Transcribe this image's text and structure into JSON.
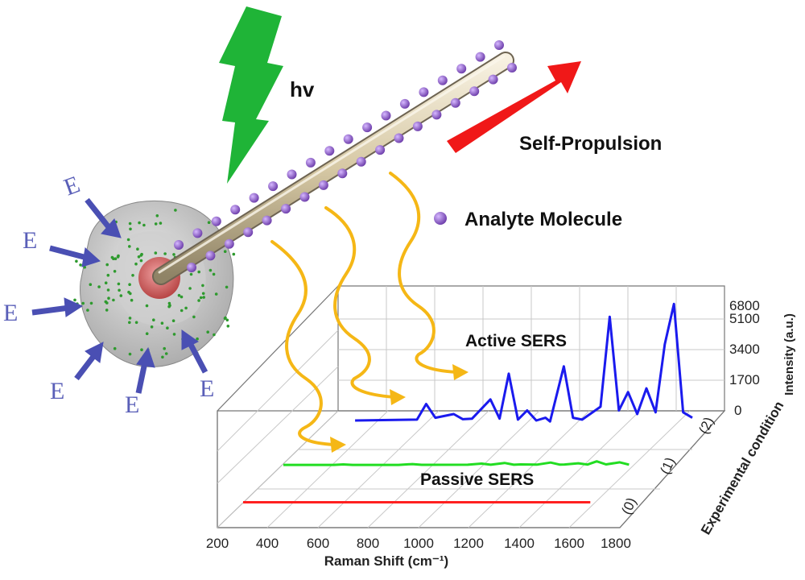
{
  "labels": {
    "hv": "hv",
    "self_propulsion": "Self-Propulsion",
    "analyte": "Analyte Molecule",
    "active_sers": "Active SERS",
    "passive_sers": "Passive SERS",
    "efield": [
      "E",
      "E",
      "E",
      "E",
      "E",
      "E"
    ]
  },
  "colors": {
    "lightning": "#1fb437",
    "propulsion_arrow": "#f01818",
    "analyte": "#8a5bc9",
    "efield_arrow": "#4a4fb3",
    "wavy_arrow": "#f5b716",
    "series": [
      "#ff2020",
      "#22dd22",
      "#1a1aee"
    ]
  },
  "chart_data": {
    "type": "line",
    "x_ticks": [
      "200",
      "400",
      "600",
      "800",
      "1000",
      "1200",
      "1400",
      "1600",
      "1800"
    ],
    "xlabel": "Raman Shift (cm⁻¹)",
    "y_ticks": [
      "0",
      "1700",
      "3400",
      "5100",
      "6800"
    ],
    "ylabel": "Intensity (a.u.)",
    "z_ticks": [
      "(0)",
      "(1)",
      "(2)"
    ],
    "zlabel": "Experimental condition",
    "xlim": [
      200,
      1800
    ],
    "ylim": [
      0,
      6800
    ],
    "series": [
      {
        "condition": "(0)",
        "x": [
          200,
          1700
        ],
        "y": [
          80,
          80
        ]
      },
      {
        "condition": "(1)",
        "x": [
          200,
          420,
          460,
          500,
          700,
          760,
          800,
          1000,
          1060,
          1100,
          1160,
          1200,
          1230,
          1300,
          1360,
          1400,
          1420,
          1480,
          1520,
          1560,
          1600,
          1660,
          1700
        ],
        "y": [
          150,
          150,
          250,
          150,
          160,
          320,
          170,
          180,
          420,
          180,
          560,
          190,
          250,
          200,
          650,
          210,
          240,
          500,
          220,
          900,
          260,
          700,
          200
        ]
      },
      {
        "condition": "(2)",
        "x": [
          330,
          600,
          640,
          680,
          760,
          800,
          840,
          920,
          960,
          1000,
          1040,
          1080,
          1120,
          1160,
          1180,
          1240,
          1280,
          1320,
          1400,
          1440,
          1480,
          1520,
          1560,
          1600,
          1640,
          1680,
          1720,
          1760,
          1800
        ],
        "y": [
          350,
          400,
          1250,
          500,
          700,
          420,
          450,
          1500,
          450,
          2900,
          400,
          900,
          350,
          500,
          300,
          3300,
          500,
          400,
          1100,
          6000,
          900,
          1900,
          700,
          2100,
          800,
          4500,
          6700,
          800,
          500
        ]
      }
    ]
  }
}
